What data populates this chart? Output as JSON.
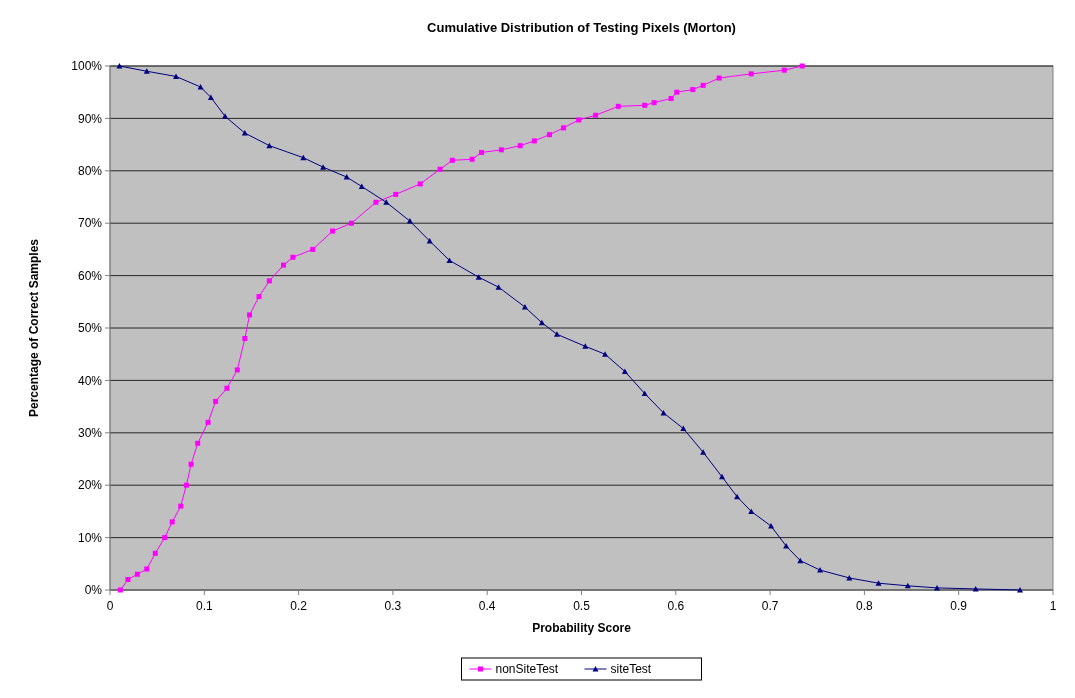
{
  "chart_data": {
    "type": "line",
    "title": "Cumulative Distribution of Testing Pixels (Morton)",
    "xlabel": "Probability Score",
    "ylabel": "Percentage of Correct Samples",
    "xlim": [
      0,
      1
    ],
    "xticks": [
      0,
      0.1,
      0.2,
      0.3,
      0.4,
      0.5,
      0.6,
      0.7,
      0.8,
      0.9,
      1
    ],
    "ylim": [
      0,
      100
    ],
    "yticks": [
      {
        "value": 0,
        "label": "0%"
      },
      {
        "value": 10,
        "label": "10%"
      },
      {
        "value": 20,
        "label": "20%"
      },
      {
        "value": 30,
        "label": "30%"
      },
      {
        "value": 40,
        "label": "40%"
      },
      {
        "value": 50,
        "label": "50%"
      },
      {
        "value": 60,
        "label": "60%"
      },
      {
        "value": 70,
        "label": "70%"
      },
      {
        "value": 80,
        "label": "80%"
      },
      {
        "value": 90,
        "label": "90%"
      },
      {
        "value": 100,
        "label": "100%"
      }
    ],
    "grid": "y",
    "legend": "bottom",
    "series": [
      {
        "name": "nonSiteTest",
        "color": "#ff00ff",
        "marker": "square",
        "x": [
          0.011,
          0.019,
          0.029,
          0.039,
          0.048,
          0.058,
          0.066,
          0.075,
          0.081,
          0.086,
          0.093,
          0.104,
          0.112,
          0.124,
          0.135,
          0.143,
          0.148,
          0.158,
          0.169,
          0.184,
          0.194,
          0.215,
          0.236,
          0.256,
          0.282,
          0.303,
          0.329,
          0.35,
          0.363,
          0.384,
          0.394,
          0.415,
          0.435,
          0.45,
          0.466,
          0.481,
          0.497,
          0.515,
          0.539,
          0.567,
          0.577,
          0.595,
          0.601,
          0.618,
          0.629,
          0.646,
          0.68,
          0.715,
          0.734
        ],
        "values": [
          0,
          2,
          3,
          4,
          7,
          10,
          13,
          16,
          20,
          24,
          28,
          32,
          36,
          38.5,
          42,
          48,
          52.5,
          56,
          59,
          62,
          63.5,
          65,
          68.5,
          70,
          74,
          75.5,
          77.5,
          80.3,
          82,
          82.2,
          83.5,
          84,
          84.8,
          85.7,
          86.9,
          88.2,
          89.7,
          90.6,
          92.3,
          92.5,
          93,
          93.8,
          95,
          95.5,
          96.3,
          97.7,
          98.5,
          99.2,
          100
        ]
      },
      {
        "name": "siteTest",
        "color": "#000080",
        "marker": "triangle",
        "x": [
          0.01,
          0.039,
          0.07,
          0.096,
          0.107,
          0.122,
          0.143,
          0.169,
          0.205,
          0.226,
          0.251,
          0.267,
          0.293,
          0.318,
          0.339,
          0.36,
          0.391,
          0.412,
          0.44,
          0.458,
          0.474,
          0.504,
          0.525,
          0.546,
          0.567,
          0.587,
          0.608,
          0.629,
          0.649,
          0.665,
          0.68,
          0.701,
          0.717,
          0.732,
          0.753,
          0.784,
          0.815,
          0.846,
          0.877,
          0.918,
          0.965
        ],
        "values": [
          100,
          99,
          98,
          96,
          94,
          90.4,
          87.2,
          84.8,
          82.5,
          80.7,
          78.8,
          77,
          74,
          70.4,
          66.6,
          62.9,
          59.7,
          57.8,
          54,
          51,
          48.8,
          46.5,
          45,
          41.7,
          37.5,
          33.8,
          30.8,
          26.3,
          21.6,
          17.8,
          15,
          12.2,
          8.4,
          5.6,
          3.8,
          2.3,
          1.3,
          0.8,
          0.4,
          0.2,
          0
        ]
      }
    ]
  }
}
